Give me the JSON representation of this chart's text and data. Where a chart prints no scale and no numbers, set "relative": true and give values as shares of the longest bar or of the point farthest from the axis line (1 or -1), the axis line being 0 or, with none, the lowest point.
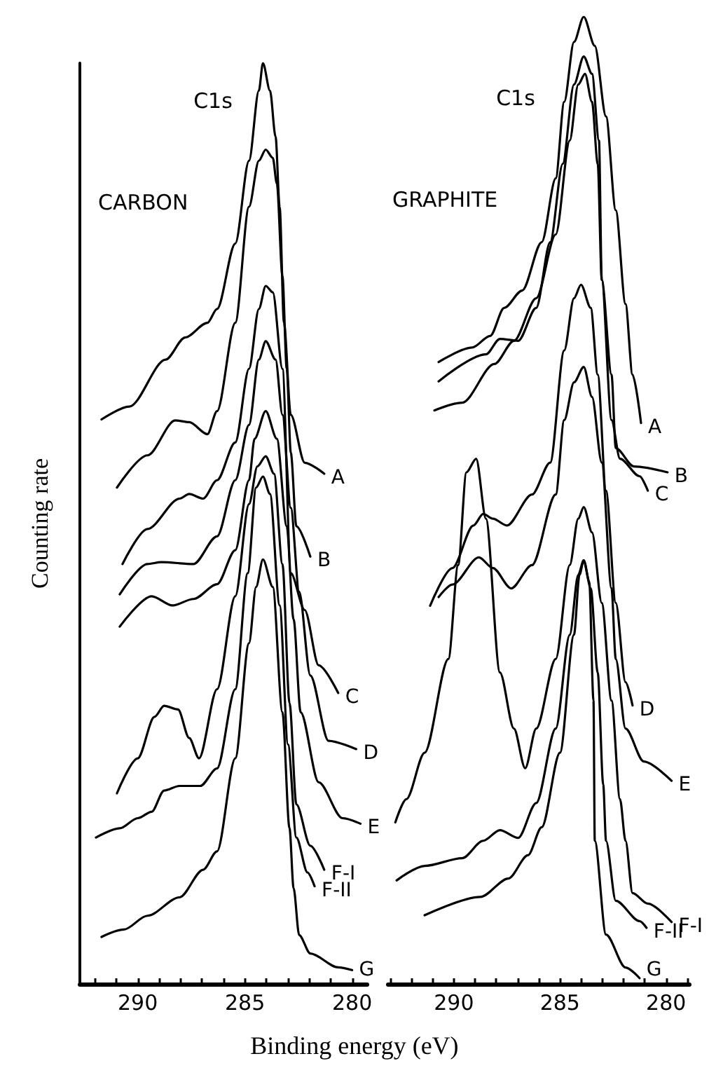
{
  "chart_data": [
    {
      "type": "line",
      "title": "CARBON",
      "xlabel": "Binding energy (eV)",
      "ylabel": "Counting rate",
      "relative": true,
      "tick_labels": "x",
      "marker": "none",
      "line_style": "solid",
      "grid": false,
      "legend": false,
      "annotations": [
        "C1s"
      ],
      "xlim": [
        292.7,
        279.3
      ],
      "xticks": [
        {
          "value": 292,
          "label": null
        },
        {
          "value": 291,
          "label": null
        },
        290,
        {
          "value": 289,
          "label": null
        },
        {
          "value": 288,
          "label": null
        },
        {
          "value": 287,
          "label": null
        },
        {
          "value": 286,
          "label": null
        },
        285,
        {
          "value": 284,
          "label": null
        },
        {
          "value": 283,
          "label": null
        },
        {
          "value": 282,
          "label": null
        },
        {
          "value": 281,
          "label": null
        },
        280
      ],
      "series": [
        {
          "name": "A",
          "color": "#000000",
          "x": [
            291.69,
            290.39,
            288.7,
            287.79,
            286.75,
            286.3,
            285.45,
            284.81,
            284.35,
            284.16,
            283.83,
            283.57,
            283.38,
            283.18,
            282.86,
            282.21,
            281.3
          ],
          "values": [
            0.613,
            0.627,
            0.678,
            0.702,
            0.718,
            0.733,
            0.804,
            0.894,
            0.97,
            1.0,
            0.97,
            0.92,
            0.844,
            0.718,
            0.618,
            0.566,
            0.554
          ]
        },
        {
          "name": "B",
          "color": "#000000",
          "x": [
            290.97,
            289.55,
            288.25,
            287.6,
            286.75,
            286.3,
            285.45,
            284.81,
            284.35,
            284.03,
            283.7,
            283.51,
            283.25,
            283.05,
            282.86,
            282.6,
            281.95
          ],
          "values": [
            0.539,
            0.574,
            0.612,
            0.61,
            0.597,
            0.622,
            0.718,
            0.844,
            0.894,
            0.906,
            0.897,
            0.869,
            0.769,
            0.668,
            0.577,
            0.497,
            0.464
          ]
        },
        {
          "name": "C",
          "color": "#000000",
          "x": [
            290.71,
            289.55,
            288.05,
            287.6,
            286.95,
            286.3,
            285.45,
            284.81,
            284.35,
            284.03,
            283.7,
            283.25,
            282.86,
            282.21,
            281.56,
            280.65
          ],
          "values": [
            0.456,
            0.494,
            0.527,
            0.532,
            0.527,
            0.547,
            0.588,
            0.668,
            0.733,
            0.758,
            0.751,
            0.668,
            0.446,
            0.406,
            0.346,
            0.316
          ]
        },
        {
          "name": "D",
          "color": "#000000",
          "x": [
            290.84,
            289.55,
            288.9,
            287.4,
            286.3,
            285.45,
            284.81,
            284.35,
            284.03,
            283.57,
            283.25,
            282.86,
            282.47,
            281.95,
            281.1,
            279.81
          ],
          "values": [
            0.423,
            0.456,
            0.458,
            0.456,
            0.486,
            0.547,
            0.607,
            0.678,
            0.698,
            0.678,
            0.618,
            0.517,
            0.426,
            0.335,
            0.264,
            0.255
          ]
        },
        {
          "name": "E",
          "color": "#000000",
          "x": [
            290.84,
            289.35,
            288.38,
            287.4,
            286.3,
            285.45,
            284.81,
            284.55,
            284.03,
            283.51,
            283.05,
            282.73,
            282.4,
            281.56,
            280.45,
            279.61
          ],
          "values": [
            0.388,
            0.421,
            0.411,
            0.418,
            0.434,
            0.471,
            0.547,
            0.592,
            0.622,
            0.592,
            0.497,
            0.396,
            0.295,
            0.219,
            0.18,
            0.174
          ]
        },
        {
          "name": "F-I",
          "color": "#000000",
          "x": [
            290.97,
            290.0,
            289.22,
            288.77,
            288.12,
            287.6,
            287.14,
            286.3,
            285.45,
            284.81,
            284.42,
            284.03,
            283.64,
            283.25,
            282.92,
            282.6,
            281.95,
            281.3
          ],
          "values": [
            0.207,
            0.245,
            0.29,
            0.302,
            0.298,
            0.267,
            0.245,
            0.32,
            0.421,
            0.521,
            0.562,
            0.573,
            0.554,
            0.456,
            0.305,
            0.195,
            0.15,
            0.124
          ]
        },
        {
          "name": "F-II",
          "color": "#000000",
          "x": [
            291.95,
            290.84,
            290.0,
            289.35,
            288.77,
            288.05,
            287.08,
            286.3,
            285.45,
            284.87,
            284.48,
            284.16,
            283.83,
            283.38,
            282.99,
            282.6,
            282.08,
            281.75
          ],
          "values": [
            0.159,
            0.169,
            0.18,
            0.187,
            0.21,
            0.215,
            0.215,
            0.234,
            0.32,
            0.446,
            0.539,
            0.551,
            0.532,
            0.411,
            0.26,
            0.159,
            0.121,
            0.106
          ]
        },
        {
          "name": "G",
          "color": "#000000",
          "x": [
            291.69,
            290.65,
            289.55,
            288.05,
            286.95,
            286.3,
            285.45,
            284.81,
            284.48,
            284.16,
            283.7,
            283.25,
            282.92,
            282.73,
            282.47,
            281.95,
            280.65,
            280.0
          ],
          "values": [
            0.051,
            0.059,
            0.074,
            0.094,
            0.124,
            0.144,
            0.245,
            0.37,
            0.431,
            0.461,
            0.431,
            0.295,
            0.169,
            0.104,
            0.053,
            0.033,
            0.018,
            0.015
          ]
        }
      ]
    },
    {
      "type": "line",
      "title": "GRAPHITE",
      "relative": true,
      "tick_labels": "x",
      "marker": "none",
      "line_style": "solid",
      "grid": false,
      "legend": false,
      "annotations": [
        "C1s"
      ],
      "xlim": [
        293.1,
        278.9
      ],
      "xticks": [
        {
          "value": 293,
          "label": null
        },
        {
          "value": 292,
          "label": null
        },
        {
          "value": 291,
          "label": null
        },
        290,
        {
          "value": 289,
          "label": null
        },
        {
          "value": 288,
          "label": null
        },
        {
          "value": 287,
          "label": null
        },
        {
          "value": 286,
          "label": null
        },
        285,
        {
          "value": 284,
          "label": null
        },
        {
          "value": 283,
          "label": null
        },
        {
          "value": 282,
          "label": null
        },
        {
          "value": 281,
          "label": null
        },
        280,
        {
          "value": 279,
          "label": null
        }
      ],
      "series": [
        {
          "name": "A",
          "color": "#000000",
          "x": [
            290.72,
            289.14,
            288.29,
            287.63,
            286.78,
            285.86,
            285.2,
            284.8,
            284.34,
            283.88,
            283.36,
            282.83,
            282.37,
            281.91,
            281.58,
            281.18
          ],
          "values": [
            0.643,
            0.658,
            0.67,
            0.699,
            0.717,
            0.767,
            0.833,
            0.912,
            0.974,
            1.0,
            0.97,
            0.897,
            0.8,
            0.703,
            0.63,
            0.58
          ]
        },
        {
          "name": "B",
          "color": "#000000",
          "x": [
            290.72,
            288.49,
            287.83,
            286.97,
            286.12,
            285.46,
            284.87,
            284.34,
            283.88,
            283.49,
            283.16,
            283.03,
            282.57,
            282.37,
            281.51,
            279.93
          ],
          "values": [
            0.623,
            0.651,
            0.667,
            0.665,
            0.699,
            0.767,
            0.848,
            0.93,
            0.959,
            0.941,
            0.872,
            0.728,
            0.63,
            0.554,
            0.535,
            0.529
          ]
        },
        {
          "name": "C",
          "color": "#000000",
          "x": [
            290.92,
            289.61,
            288.09,
            287.17,
            286.12,
            285.2,
            284.54,
            284.14,
            283.82,
            283.49,
            283.22,
            283.03,
            282.57,
            282.17,
            281.25,
            280.86
          ],
          "values": [
            0.593,
            0.601,
            0.641,
            0.665,
            0.709,
            0.775,
            0.872,
            0.93,
            0.941,
            0.912,
            0.848,
            0.728,
            0.583,
            0.543,
            0.525,
            0.51
          ]
        },
        {
          "name": "D",
          "color": "#000000",
          "x": [
            291.12,
            290.07,
            289.08,
            288.62,
            288.16,
            287.5,
            286.32,
            285.46,
            284.8,
            284.34,
            284.01,
            283.55,
            283.22,
            282.83,
            282.37,
            281.91,
            281.58
          ],
          "values": [
            0.391,
            0.43,
            0.474,
            0.486,
            0.481,
            0.474,
            0.506,
            0.539,
            0.655,
            0.709,
            0.723,
            0.699,
            0.63,
            0.51,
            0.394,
            0.312,
            0.288
          ]
        },
        {
          "name": "E",
          "color": "#000000",
          "x": [
            290.72,
            290.07,
            288.82,
            288.16,
            287.3,
            286.32,
            285.2,
            284.8,
            284.34,
            283.88,
            283.49,
            283.03,
            282.57,
            282.37,
            281.91,
            281.05,
            279.74
          ],
          "values": [
            0.4,
            0.413,
            0.441,
            0.43,
            0.409,
            0.433,
            0.506,
            0.583,
            0.622,
            0.638,
            0.607,
            0.539,
            0.409,
            0.336,
            0.264,
            0.23,
            0.21
          ]
        },
        {
          "name": "F-I",
          "color": "#000000",
          "x": [
            292.76,
            292.24,
            291.38,
            290.26,
            289.8,
            289.41,
            288.95,
            288.49,
            287.83,
            287.17,
            286.64,
            286.12,
            285.2,
            284.54,
            284.14,
            283.88,
            283.49,
            283.03,
            282.57,
            282.17,
            281.91,
            281.58,
            280.86,
            279.74
          ],
          "values": [
            0.167,
            0.191,
            0.239,
            0.336,
            0.433,
            0.529,
            0.543,
            0.481,
            0.322,
            0.264,
            0.223,
            0.264,
            0.336,
            0.433,
            0.481,
            0.493,
            0.467,
            0.394,
            0.293,
            0.191,
            0.148,
            0.094,
            0.083,
            0.064
          ]
        },
        {
          "name": "F-II",
          "color": "#000000",
          "x": [
            292.7,
            291.38,
            289.61,
            288.62,
            287.83,
            286.97,
            286.12,
            285.2,
            284.54,
            284.14,
            283.88,
            283.55,
            283.22,
            282.96,
            282.83,
            282.37,
            281.25,
            280.92
          ],
          "values": [
            0.107,
            0.122,
            0.13,
            0.148,
            0.159,
            0.151,
            0.187,
            0.264,
            0.361,
            0.423,
            0.438,
            0.409,
            0.322,
            0.206,
            0.148,
            0.086,
            0.065,
            0.058
          ]
        },
        {
          "name": "G",
          "color": "#000000",
          "x": [
            291.38,
            288.75,
            287.43,
            286.51,
            285.86,
            285.0,
            284.34,
            284.08,
            283.88,
            283.62,
            283.42,
            283.36,
            282.83,
            281.91,
            281.25
          ],
          "values": [
            0.071,
            0.09,
            0.109,
            0.133,
            0.162,
            0.239,
            0.361,
            0.423,
            0.438,
            0.416,
            0.293,
            0.148,
            0.051,
            0.017,
            0.006
          ]
        }
      ]
    }
  ]
}
